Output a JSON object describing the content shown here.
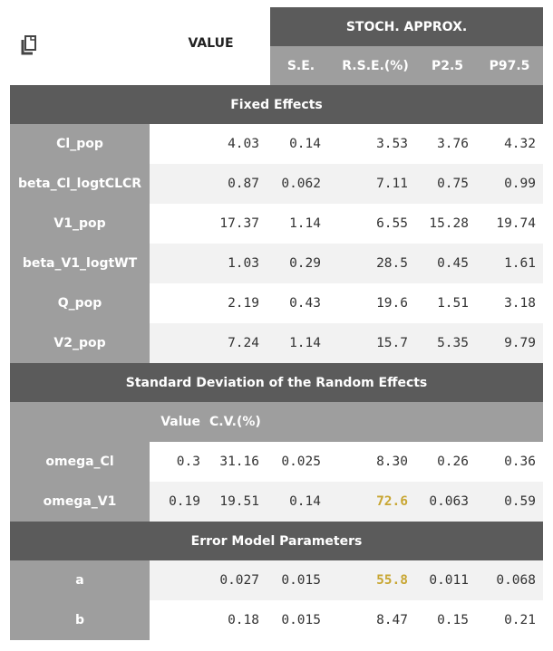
{
  "header": {
    "value_label": "VALUE",
    "stoch_label": "STOCH. APPROX.",
    "cols": [
      "S.E.",
      "R.S.E.(%)",
      "P2.5",
      "P97.5"
    ]
  },
  "sections": {
    "fixed": "Fixed Effects",
    "random": "Standard Deviation of the Random Effects",
    "error": "Error Model Parameters"
  },
  "fixed_rows": [
    {
      "name": "Cl_pop",
      "value": "4.03",
      "se": "0.14",
      "rse": "3.53",
      "p25": "3.76",
      "p975": "4.32"
    },
    {
      "name": "beta_Cl_logtCLCR",
      "value": "0.87",
      "se": "0.062",
      "rse": "7.11",
      "p25": "0.75",
      "p975": "0.99"
    },
    {
      "name": "V1_pop",
      "value": "17.37",
      "se": "1.14",
      "rse": "6.55",
      "p25": "15.28",
      "p975": "19.74"
    },
    {
      "name": "beta_V1_logtWT",
      "value": "1.03",
      "se": "0.29",
      "rse": "28.5",
      "p25": "0.45",
      "p975": "1.61"
    },
    {
      "name": "Q_pop",
      "value": "2.19",
      "se": "0.43",
      "rse": "19.6",
      "p25": "1.51",
      "p975": "3.18"
    },
    {
      "name": "V2_pop",
      "value": "7.24",
      "se": "1.14",
      "rse": "15.7",
      "p25": "5.35",
      "p975": "9.79"
    }
  ],
  "random_sub": {
    "value": "Value",
    "cv": "C.V.(%)"
  },
  "random_rows": [
    {
      "name": "omega_Cl",
      "value": "0.3",
      "cv": "31.16",
      "se": "0.025",
      "rse": "8.30",
      "p25": "0.26",
      "p975": "0.36"
    },
    {
      "name": "omega_V1",
      "value": "0.19",
      "cv": "19.51",
      "se": "0.14",
      "rse": "72.6",
      "p25": "0.063",
      "p975": "0.59"
    }
  ],
  "error_rows": [
    {
      "name": "a",
      "value": "0.027",
      "se": "0.015",
      "rse": "55.8",
      "p25": "0.011",
      "p975": "0.068"
    },
    {
      "name": "b",
      "value": "0.18",
      "se": "0.015",
      "rse": "8.47",
      "p25": "0.15",
      "p975": "0.21"
    }
  ],
  "highlight_color": "#c8a632"
}
